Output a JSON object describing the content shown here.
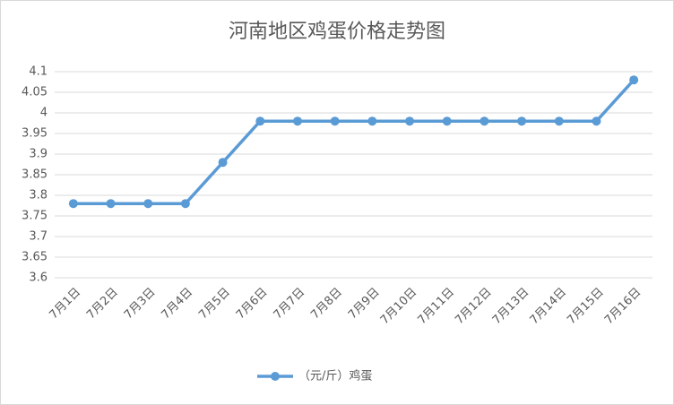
{
  "chart_data": {
    "type": "line",
    "title": "河南地区鸡蛋价格走势图",
    "categories": [
      "7月1日",
      "7月2日",
      "7月3日",
      "7月4日",
      "7月5日",
      "7月6日",
      "7月7日",
      "7月8日",
      "7月9日",
      "7月10日",
      "7月11日",
      "7月12日",
      "7月13日",
      "7月14日",
      "7月15日",
      "7月16日"
    ],
    "series": [
      {
        "name": "（元/斤）鸡蛋",
        "color": "#5b9bd5",
        "values": [
          3.78,
          3.78,
          3.78,
          3.78,
          3.88,
          3.98,
          3.98,
          3.98,
          3.98,
          3.98,
          3.98,
          3.98,
          3.98,
          3.98,
          3.98,
          4.08
        ]
      }
    ],
    "ylim": [
      3.6,
      4.1
    ],
    "yticks": [
      3.6,
      3.65,
      3.7,
      3.75,
      3.8,
      3.85,
      3.9,
      3.95,
      4,
      4.05,
      4.1
    ],
    "grid": true,
    "legend": "bottom"
  }
}
